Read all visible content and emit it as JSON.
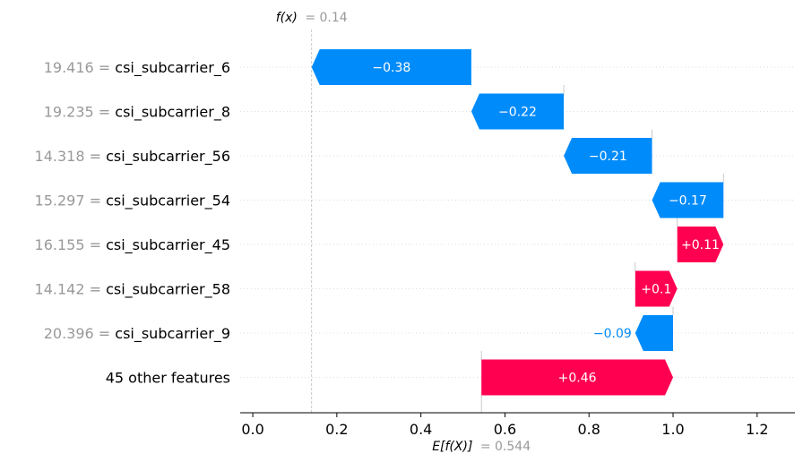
{
  "chart_data": {
    "type": "bar",
    "subtype": "waterfall",
    "fx": {
      "label_math": "f(x)",
      "value_text": "= 0.14",
      "value": 0.14
    },
    "base": {
      "label_math": "E[f(X)]",
      "value_text": "= 0.544",
      "value": 0.544
    },
    "xlim": [
      -0.03,
      1.29
    ],
    "xticks": [
      0.0,
      0.2,
      0.4,
      0.6,
      0.8,
      1.0,
      1.2
    ],
    "xtick_labels": [
      "0.0",
      "0.2",
      "0.4",
      "0.6",
      "0.8",
      "1.0",
      "1.2"
    ],
    "grid": false,
    "colors": {
      "positive": "#ff0051",
      "negative": "#008bfb",
      "feature_value": "#999999"
    },
    "features": [
      {
        "value": "19.416",
        "name": "csi_subcarrier_6",
        "start": 0.52,
        "end": 0.14,
        "contribution": -0.38,
        "label": "−0.38",
        "label_inside": true
      },
      {
        "value": "19.235",
        "name": "csi_subcarrier_8",
        "start": 0.74,
        "end": 0.52,
        "contribution": -0.22,
        "label": "−0.22",
        "label_inside": true
      },
      {
        "value": "14.318",
        "name": "csi_subcarrier_56",
        "start": 0.95,
        "end": 0.74,
        "contribution": -0.21,
        "label": "−0.21",
        "label_inside": true
      },
      {
        "value": "15.297",
        "name": "csi_subcarrier_54",
        "start": 1.12,
        "end": 0.95,
        "contribution": -0.17,
        "label": "−0.17",
        "label_inside": true
      },
      {
        "value": "16.155",
        "name": "csi_subcarrier_45",
        "start": 1.01,
        "end": 1.12,
        "contribution": 0.11,
        "label": "+0.11",
        "label_inside": true
      },
      {
        "value": "14.142",
        "name": "csi_subcarrier_58",
        "start": 0.91,
        "end": 1.01,
        "contribution": 0.1,
        "label": "+0.1",
        "label_inside": true
      },
      {
        "value": "20.396",
        "name": "csi_subcarrier_9",
        "start": 1.0,
        "end": 0.91,
        "contribution": -0.09,
        "label": "−0.09",
        "label_inside": false
      },
      {
        "value": "",
        "name": "45 other features",
        "start": 0.544,
        "end": 1.0,
        "contribution": 0.46,
        "label": "+0.46",
        "label_inside": true
      }
    ]
  }
}
